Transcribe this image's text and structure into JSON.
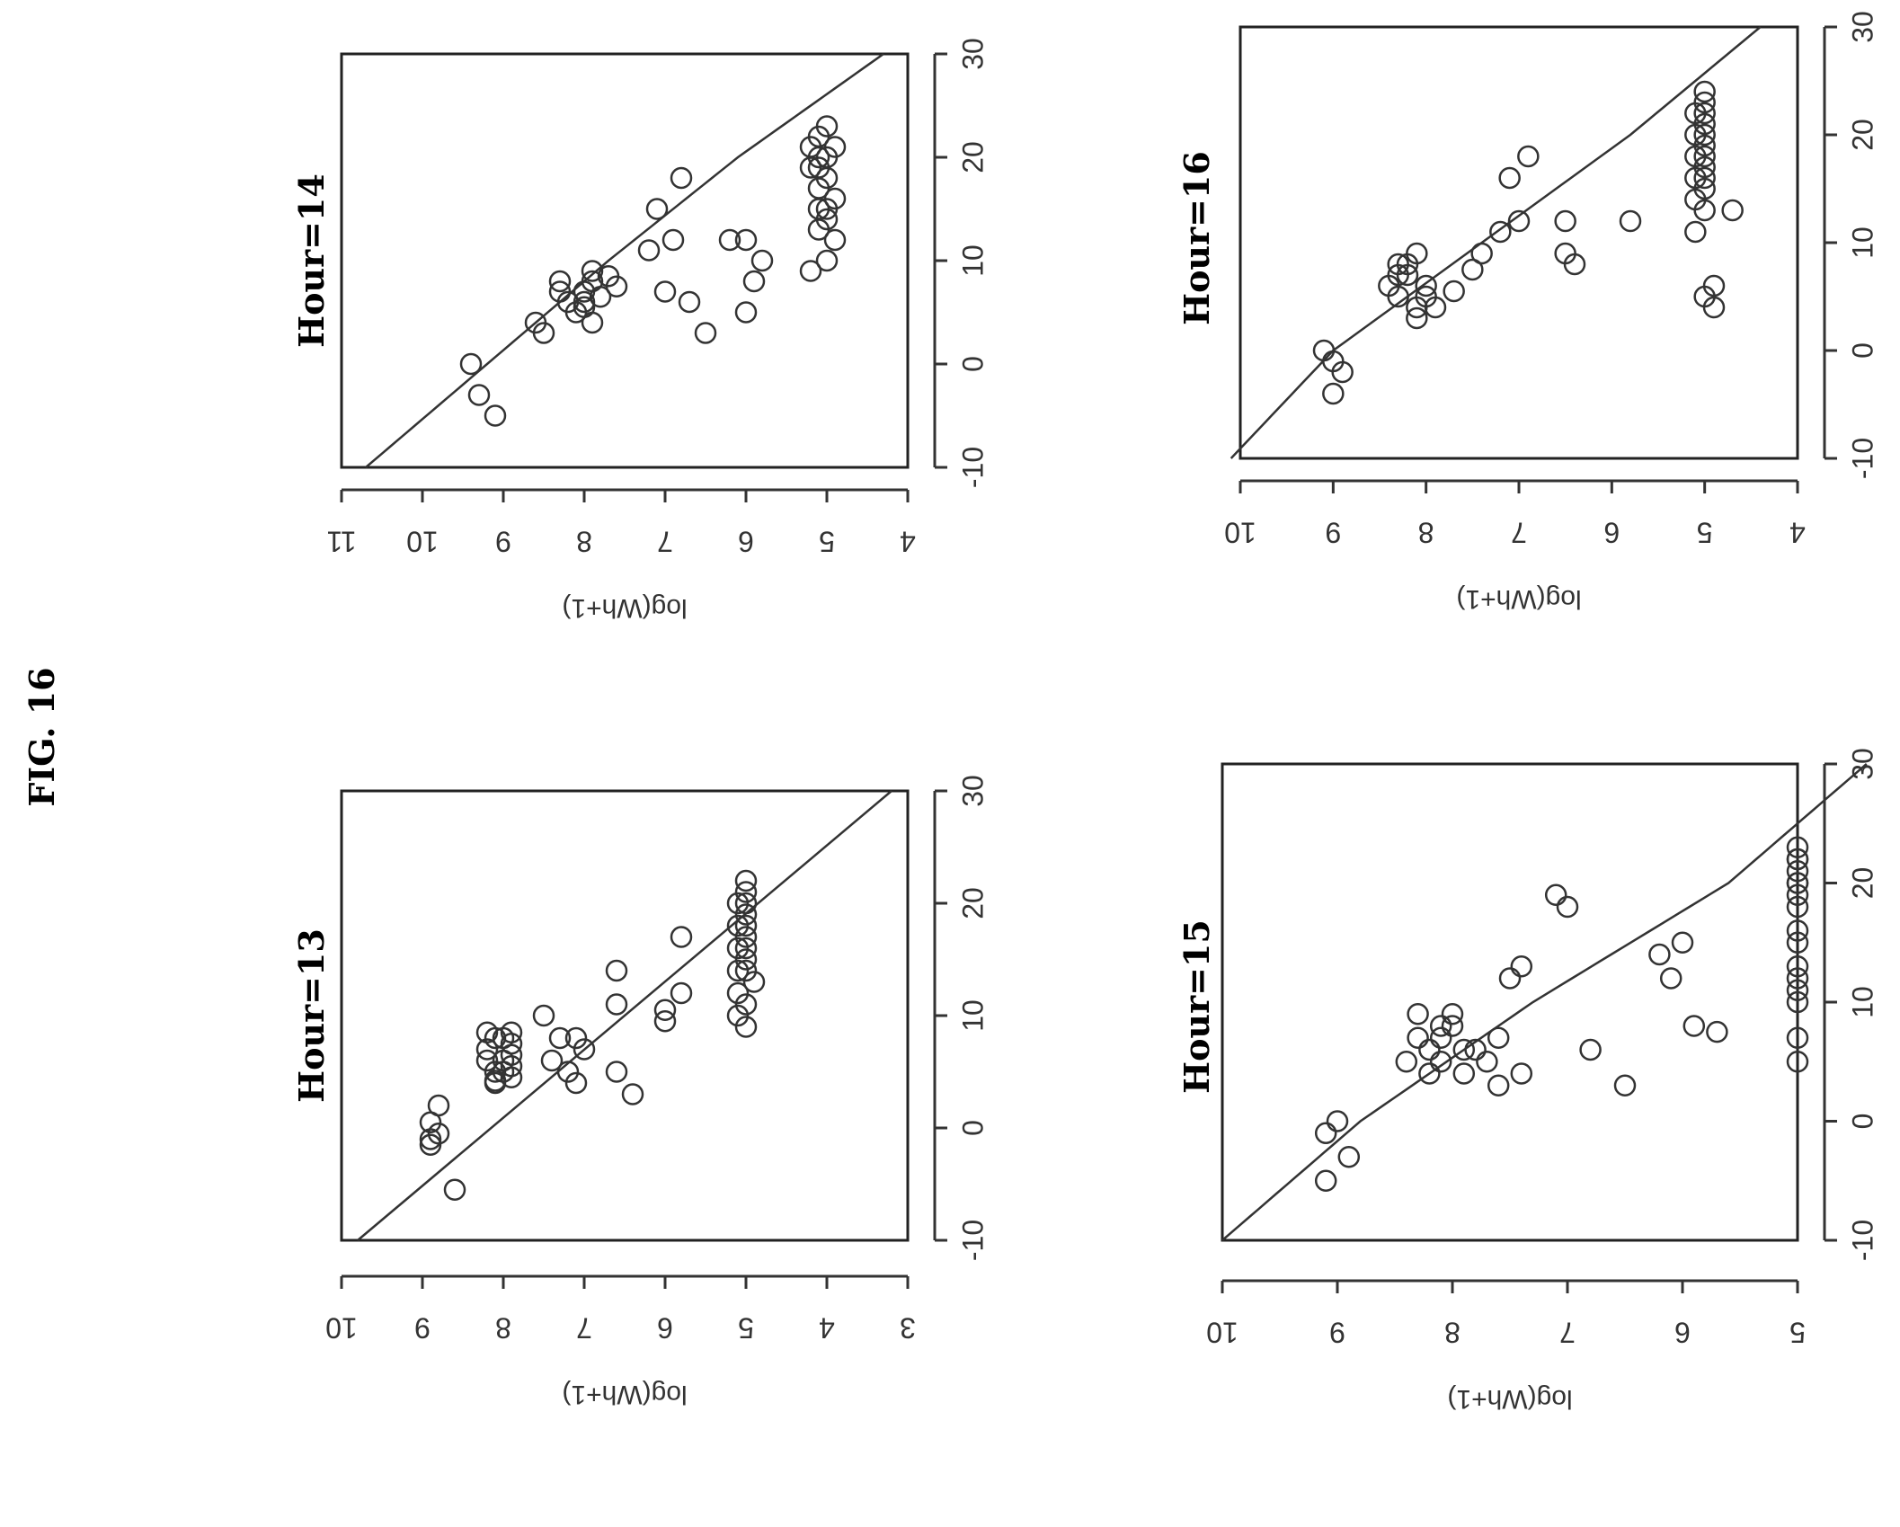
{
  "figure": {
    "title": "FIG. 16"
  },
  "chart_data": [
    {
      "type": "scatter",
      "title": "Hour=13",
      "xlabel": "",
      "ylabel": "log(Wh+1)",
      "xlim": [
        -10,
        30
      ],
      "ylim": [
        3,
        10
      ],
      "xticks": [
        -10,
        0,
        10,
        20,
        30
      ],
      "yticks": [
        3,
        4,
        5,
        6,
        7,
        8,
        9,
        10
      ],
      "fit": {
        "type": "line",
        "x": [
          -10,
          30
        ],
        "y": [
          9.8,
          3.2
        ]
      },
      "points": [
        [
          -1.5,
          8.9
        ],
        [
          -1.0,
          8.9
        ],
        [
          -0.5,
          8.8
        ],
        [
          -5.5,
          8.6
        ],
        [
          0.5,
          8.9
        ],
        [
          2.0,
          8.8
        ],
        [
          4.0,
          8.1
        ],
        [
          5.0,
          8.0
        ],
        [
          6.0,
          8.0
        ],
        [
          8.0,
          8.0
        ],
        [
          8.5,
          7.9
        ],
        [
          4.5,
          7.9
        ],
        [
          5.5,
          7.9
        ],
        [
          6.5,
          7.9
        ],
        [
          7.5,
          7.9
        ],
        [
          4.2,
          8.1
        ],
        [
          7.0,
          8.2
        ],
        [
          6.0,
          8.2
        ],
        [
          5.0,
          8.1
        ],
        [
          8.0,
          8.1
        ],
        [
          8.5,
          8.2
        ],
        [
          10.0,
          7.5
        ],
        [
          8.0,
          7.3
        ],
        [
          6.0,
          7.4
        ],
        [
          4.0,
          7.1
        ],
        [
          5.0,
          7.2
        ],
        [
          7.0,
          7.0
        ],
        [
          8.0,
          7.1
        ],
        [
          5.0,
          6.6
        ],
        [
          3.0,
          6.4
        ],
        [
          11.0,
          6.6
        ],
        [
          14.0,
          6.6
        ],
        [
          9.5,
          6.0
        ],
        [
          10.5,
          6.0
        ],
        [
          12.0,
          5.8
        ],
        [
          17.0,
          5.8
        ],
        [
          10.0,
          5.1
        ],
        [
          9.0,
          5.0
        ],
        [
          11.0,
          5.0
        ],
        [
          13.0,
          4.9
        ],
        [
          14.0,
          5.1
        ],
        [
          15.0,
          5.0
        ],
        [
          16.0,
          5.0
        ],
        [
          17.0,
          5.0
        ],
        [
          18.0,
          5.0
        ],
        [
          19.0,
          5.0
        ],
        [
          20.0,
          5.0
        ],
        [
          21.0,
          5.0
        ],
        [
          22.0,
          5.0
        ],
        [
          12.0,
          5.1
        ],
        [
          14.0,
          5.0
        ],
        [
          16.0,
          5.1
        ],
        [
          18.0,
          5.1
        ],
        [
          20.0,
          5.1
        ]
      ]
    },
    {
      "type": "scatter",
      "title": "Hour=14",
      "xlabel": "",
      "ylabel": "log(Wh+1)",
      "xlim": [
        -10,
        30
      ],
      "ylim": [
        4,
        11
      ],
      "xticks": [
        -10,
        0,
        10,
        20,
        30
      ],
      "yticks": [
        4,
        5,
        6,
        7,
        8,
        9,
        10,
        11
      ],
      "fit": {
        "type": "curve",
        "x": [
          -10,
          0,
          10,
          20,
          30
        ],
        "y": [
          10.7,
          9.2,
          7.7,
          6.1,
          4.3
        ]
      },
      "points": [
        [
          -3.0,
          9.3
        ],
        [
          -5.0,
          9.1
        ],
        [
          0.0,
          9.4
        ],
        [
          3.0,
          8.5
        ],
        [
          4.0,
          8.6
        ],
        [
          5.0,
          8.1
        ],
        [
          6.0,
          8.0
        ],
        [
          7.0,
          8.0
        ],
        [
          8.0,
          7.9
        ],
        [
          9.0,
          7.9
        ],
        [
          6.0,
          8.2
        ],
        [
          7.0,
          8.3
        ],
        [
          8.0,
          8.3
        ],
        [
          5.5,
          8.0
        ],
        [
          4.0,
          7.9
        ],
        [
          6.5,
          7.8
        ],
        [
          8.5,
          7.7
        ],
        [
          7.5,
          7.6
        ],
        [
          11.0,
          7.2
        ],
        [
          15.0,
          7.1
        ],
        [
          12.0,
          6.9
        ],
        [
          18.0,
          6.8
        ],
        [
          7.0,
          7.0
        ],
        [
          6.0,
          6.7
        ],
        [
          3.0,
          6.5
        ],
        [
          12.0,
          6.2
        ],
        [
          12.0,
          6.0
        ],
        [
          10.0,
          5.8
        ],
        [
          8.0,
          5.9
        ],
        [
          5.0,
          6.0
        ],
        [
          9.0,
          5.2
        ],
        [
          10.0,
          5.0
        ],
        [
          12.0,
          4.9
        ],
        [
          14.0,
          5.0
        ],
        [
          15.0,
          5.0
        ],
        [
          16.0,
          4.9
        ],
        [
          18.0,
          5.0
        ],
        [
          19.0,
          5.1
        ],
        [
          20.0,
          5.0
        ],
        [
          21.0,
          4.9
        ],
        [
          22.0,
          5.1
        ],
        [
          13.0,
          5.1
        ],
        [
          15.0,
          5.1
        ],
        [
          17.0,
          5.1
        ],
        [
          19.0,
          5.2
        ],
        [
          21.0,
          5.2
        ],
        [
          23.0,
          5.0
        ],
        [
          20.0,
          5.1
        ]
      ]
    },
    {
      "type": "scatter",
      "title": "Hour=15",
      "xlabel": "",
      "ylabel": "log(Wh+1)",
      "xlim": [
        -10,
        30
      ],
      "ylim": [
        5,
        10
      ],
      "xticks": [
        -10,
        0,
        10,
        20,
        30
      ],
      "yticks": [
        5,
        6,
        7,
        8,
        9,
        10
      ],
      "fit": {
        "type": "curve",
        "x": [
          -10,
          0,
          10,
          20,
          30
        ],
        "y": [
          10.0,
          8.8,
          7.3,
          5.6,
          4.4
        ]
      },
      "points": [
        [
          -5.0,
          9.1
        ],
        [
          -3.0,
          8.9
        ],
        [
          0.0,
          9.0
        ],
        [
          -1.0,
          9.1
        ],
        [
          4.0,
          8.2
        ],
        [
          5.0,
          8.4
        ],
        [
          6.0,
          8.2
        ],
        [
          7.0,
          8.3
        ],
        [
          8.0,
          8.1
        ],
        [
          9.0,
          8.3
        ],
        [
          4.0,
          7.9
        ],
        [
          6.0,
          7.9
        ],
        [
          8.0,
          8.0
        ],
        [
          5.0,
          8.1
        ],
        [
          7.0,
          8.1
        ],
        [
          9.0,
          8.0
        ],
        [
          6.0,
          7.8
        ],
        [
          5.0,
          7.7
        ],
        [
          3.0,
          7.6
        ],
        [
          7.0,
          7.6
        ],
        [
          4.0,
          7.4
        ],
        [
          12.0,
          7.5
        ],
        [
          13.0,
          7.4
        ],
        [
          18.0,
          7.0
        ],
        [
          19.0,
          7.1
        ],
        [
          6.0,
          6.8
        ],
        [
          3.0,
          6.5
        ],
        [
          14.0,
          6.2
        ],
        [
          12.0,
          6.1
        ],
        [
          15.0,
          6.0
        ],
        [
          8.0,
          5.9
        ],
        [
          7.5,
          5.7
        ],
        [
          5.0,
          5.0
        ],
        [
          7.0,
          5.0
        ],
        [
          10.0,
          5.0
        ],
        [
          12.0,
          5.0
        ],
        [
          15.0,
          5.0
        ],
        [
          18.0,
          5.0
        ],
        [
          20.0,
          5.0
        ],
        [
          21.0,
          5.0
        ],
        [
          22.0,
          5.0
        ],
        [
          23.0,
          5.0
        ],
        [
          11.0,
          5.0
        ],
        [
          13.0,
          5.0
        ],
        [
          16.0,
          5.0
        ],
        [
          19.0,
          5.0
        ],
        [
          20.0,
          5.0
        ],
        [
          22.0,
          5.0
        ]
      ]
    },
    {
      "type": "scatter",
      "title": "Hour=16",
      "xlabel": "",
      "ylabel": "log(Wh+1)",
      "xlim": [
        -10,
        30
      ],
      "ylim": [
        4,
        10
      ],
      "xticks": [
        -10,
        0,
        10,
        20,
        30
      ],
      "yticks": [
        4,
        5,
        6,
        7,
        8,
        9,
        10
      ],
      "fit": {
        "type": "curve",
        "x": [
          -10,
          0,
          10,
          20,
          30
        ],
        "y": [
          10.1,
          9.0,
          7.4,
          5.8,
          4.4
        ]
      },
      "points": [
        [
          -4.0,
          9.0
        ],
        [
          -2.0,
          8.9
        ],
        [
          -1.0,
          9.0
        ],
        [
          0.0,
          9.1
        ],
        [
          3.0,
          8.1
        ],
        [
          4.0,
          8.1
        ],
        [
          5.0,
          8.0
        ],
        [
          6.0,
          8.0
        ],
        [
          7.0,
          8.2
        ],
        [
          8.0,
          8.3
        ],
        [
          5.0,
          8.3
        ],
        [
          6.0,
          8.4
        ],
        [
          7.0,
          8.3
        ],
        [
          8.0,
          8.2
        ],
        [
          9.0,
          8.1
        ],
        [
          4.0,
          7.9
        ],
        [
          5.5,
          7.7
        ],
        [
          7.5,
          7.5
        ],
        [
          9.0,
          7.4
        ],
        [
          11.0,
          7.2
        ],
        [
          12.0,
          7.0
        ],
        [
          16.0,
          7.1
        ],
        [
          18.0,
          6.9
        ],
        [
          12.0,
          6.5
        ],
        [
          9.0,
          6.5
        ],
        [
          8.0,
          6.4
        ],
        [
          12.0,
          5.8
        ],
        [
          11.0,
          5.1
        ],
        [
          13.0,
          5.0
        ],
        [
          15.0,
          5.0
        ],
        [
          16.0,
          5.0
        ],
        [
          17.0,
          5.0
        ],
        [
          18.0,
          5.0
        ],
        [
          19.0,
          5.0
        ],
        [
          20.0,
          5.0
        ],
        [
          21.0,
          5.0
        ],
        [
          22.0,
          5.0
        ],
        [
          23.0,
          5.0
        ],
        [
          5.0,
          5.0
        ],
        [
          6.0,
          4.9
        ],
        [
          4.0,
          4.9
        ],
        [
          13.0,
          4.7
        ],
        [
          14.0,
          5.1
        ],
        [
          16.0,
          5.1
        ],
        [
          18.0,
          5.1
        ],
        [
          20.0,
          5.1
        ],
        [
          22.0,
          5.1
        ],
        [
          24.0,
          5.0
        ]
      ]
    }
  ]
}
